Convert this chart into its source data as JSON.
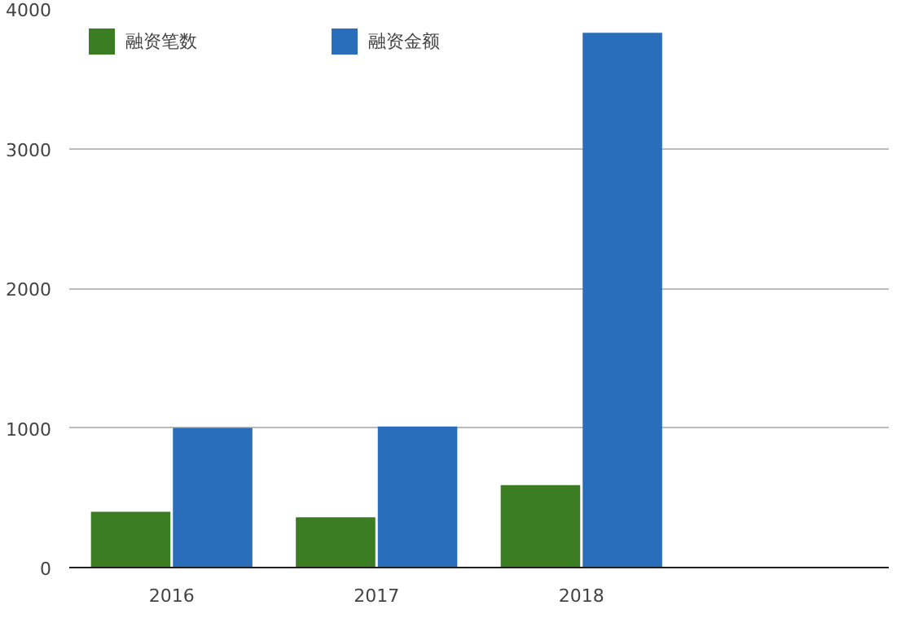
{
  "chart_data": {
    "type": "bar",
    "categories": [
      "2016",
      "2017",
      "2018",
      null
    ],
    "series": [
      {
        "name": "融资笔数",
        "color": "#3a7d22",
        "values": [
          400,
          360,
          590,
          null
        ]
      },
      {
        "name": "融资金额",
        "color": "#2a6ebb",
        "values": [
          1000,
          1010,
          3830,
          null
        ]
      }
    ],
    "ylim": [
      0,
      4000
    ],
    "yticks": [
      0,
      1000,
      2000,
      3000,
      4000
    ],
    "grid": "y",
    "legend": "top"
  }
}
